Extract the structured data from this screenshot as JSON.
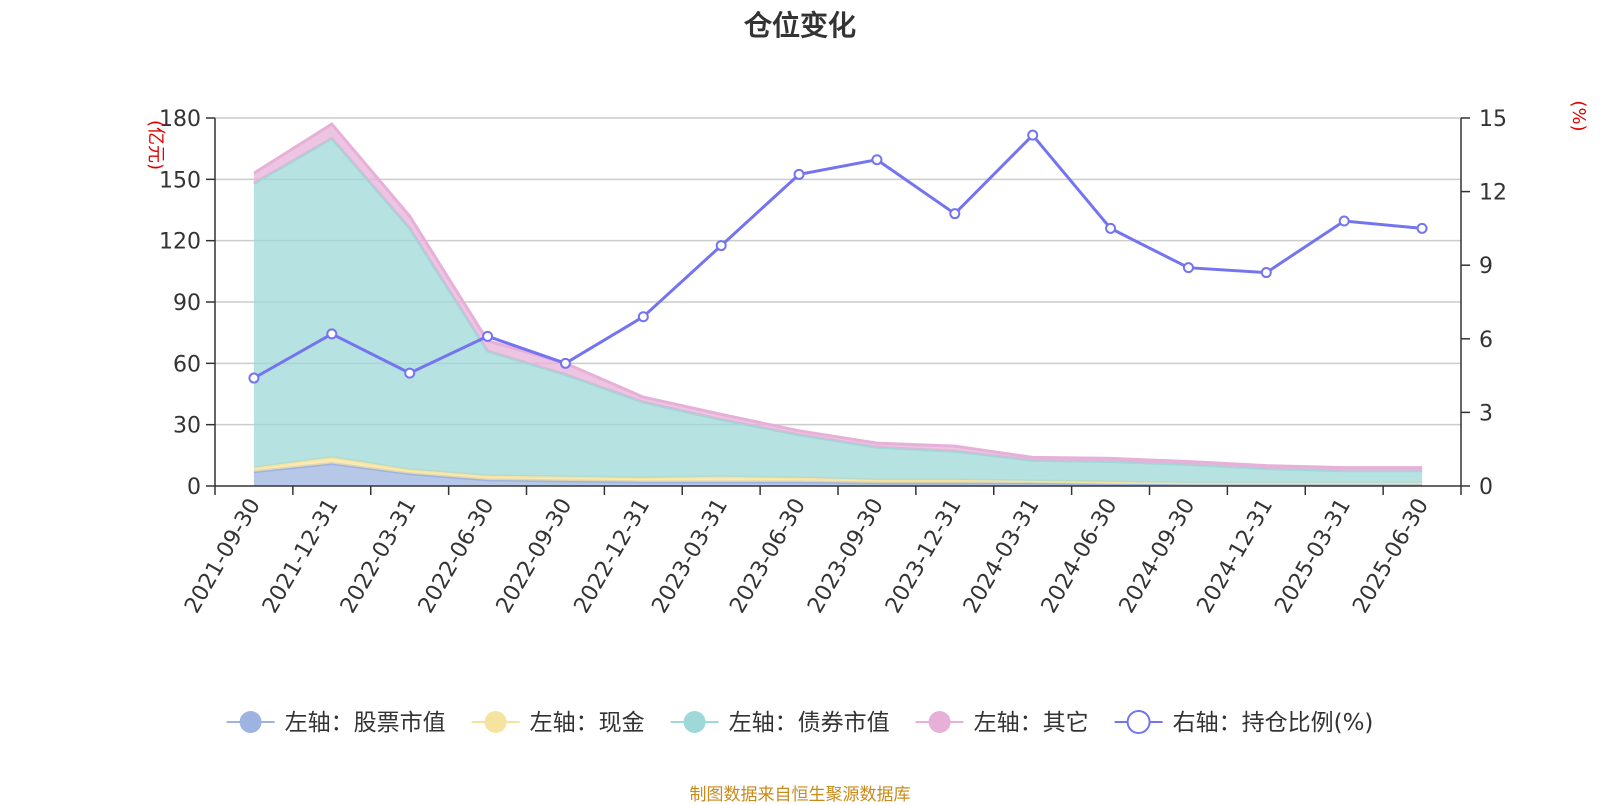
{
  "colors": {
    "stock": "#9db4e0",
    "cash": "#f7e3a0",
    "bond": "#9fd8d8",
    "other": "#e7b0d8",
    "ratio": "#7474f0",
    "grid": "#cccccc",
    "axis": "#333333",
    "unit": "#e00000",
    "source": "#c98a1a"
  },
  "chart_data": {
    "type": "area",
    "title": "仓位变化",
    "left_axis": {
      "unit": "(亿元)",
      "ticks": [
        0,
        30,
        60,
        90,
        120,
        150,
        180
      ],
      "ylim": [
        0,
        180
      ]
    },
    "right_axis": {
      "unit": "(%)",
      "ticks": [
        0,
        3,
        6,
        9,
        12,
        15
      ],
      "ylim": [
        0,
        15
      ]
    },
    "x": [
      "2021-09-30",
      "2021-12-31",
      "2022-03-31",
      "2022-06-30",
      "2022-09-30",
      "2022-12-31",
      "2023-03-31",
      "2023-06-30",
      "2023-09-30",
      "2023-12-31",
      "2024-03-31",
      "2024-06-30",
      "2024-09-30",
      "2024-12-31",
      "2025-03-31",
      "2025-06-30"
    ],
    "stacked_series": [
      {
        "key": "stock",
        "name": "左轴：股票市值",
        "values": [
          7,
          11,
          6,
          3,
          2.5,
          2,
          2,
          2,
          1.5,
          1.5,
          1.5,
          1,
          1,
          1,
          1,
          1
        ]
      },
      {
        "key": "cash",
        "name": "左轴：现金",
        "values": [
          2,
          3,
          2,
          2,
          2,
          2,
          2.5,
          2,
          1.5,
          1.5,
          1,
          1,
          0.5,
          0.5,
          0.5,
          0.5
        ]
      },
      {
        "key": "bond",
        "name": "左轴：债券市值",
        "values": [
          139,
          156,
          118,
          61,
          50,
          37,
          28,
          21,
          16,
          14,
          10,
          10,
          9,
          7,
          6,
          6
        ]
      },
      {
        "key": "other",
        "name": "左轴：其它",
        "values": [
          5,
          7,
          6,
          5,
          5.5,
          2.5,
          2.5,
          2,
          2,
          2.5,
          1.5,
          1.5,
          1.5,
          1.5,
          1.5,
          1.5
        ]
      }
    ],
    "line_series": {
      "key": "ratio",
      "name": "右轴：持仓比例(%)",
      "axis": "right",
      "values": [
        4.4,
        6.2,
        4.6,
        6.1,
        5.0,
        6.9,
        9.8,
        12.7,
        13.3,
        11.1,
        14.3,
        10.5,
        8.9,
        8.7,
        10.8,
        10.5
      ]
    },
    "grid": true,
    "legend_position": "bottom"
  },
  "source_note": "制图数据来自恒生聚源数据库"
}
